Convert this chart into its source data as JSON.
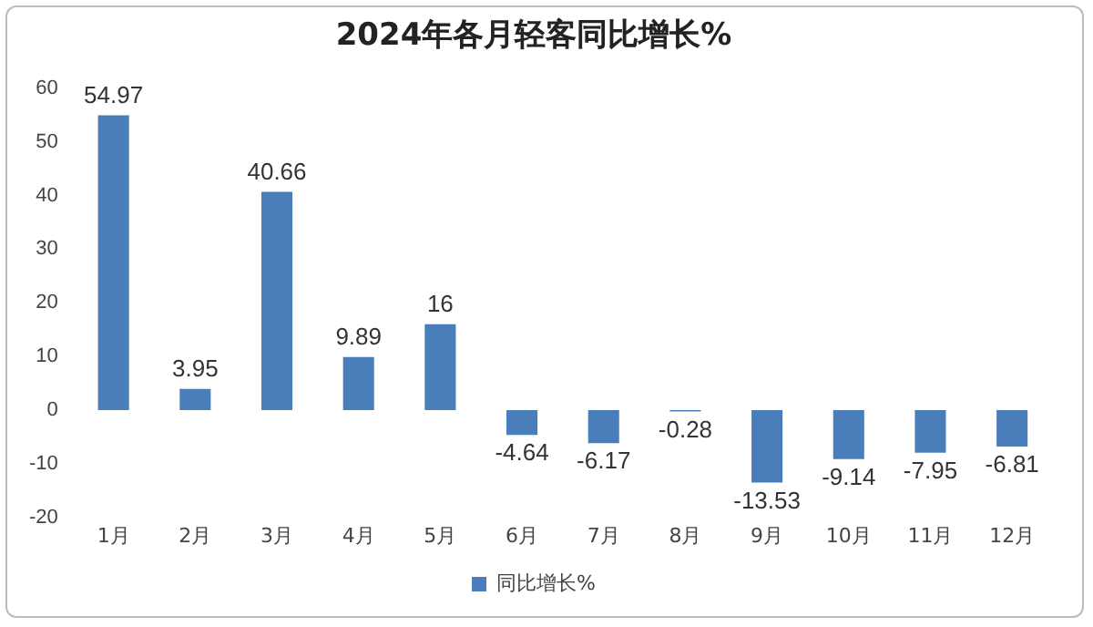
{
  "chart_data": {
    "type": "bar",
    "title": "2024年各月轻客同比增长%",
    "categories": [
      "1月",
      "2月",
      "3月",
      "4月",
      "5月",
      "6月",
      "7月",
      "8月",
      "9月",
      "10月",
      "11月",
      "12月"
    ],
    "series": [
      {
        "name": "同比增长%",
        "color": "#4a7ebb",
        "values": [
          54.97,
          3.95,
          40.66,
          9.89,
          16,
          -4.64,
          -6.17,
          -0.28,
          -13.53,
          -9.14,
          -7.95,
          -6.81
        ]
      }
    ],
    "ylim": [
      -20,
      60
    ],
    "yticks": [
      -20,
      -10,
      0,
      10,
      20,
      30,
      40,
      50,
      60
    ],
    "grid": false,
    "legend": "bottom",
    "data_labels": true
  }
}
